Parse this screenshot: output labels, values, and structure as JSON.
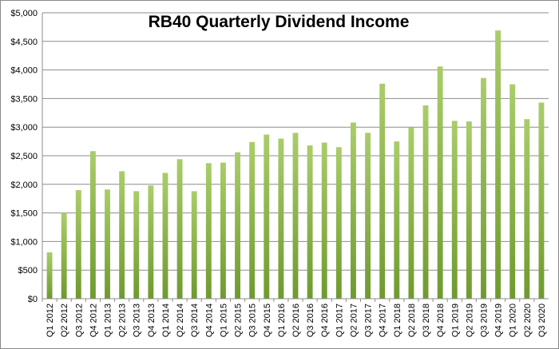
{
  "chart_data": {
    "type": "bar",
    "title": "RB40 Quarterly Dividend Income",
    "xlabel": "",
    "ylabel": "",
    "ylim": [
      0,
      5000
    ],
    "ytick_step": 500,
    "ytick_prefix": "$",
    "grid": true,
    "legend": "none",
    "bar_color_top": "#aacd6a",
    "bar_color_bottom": "#6f9a2e",
    "categories": [
      "Q1 2012",
      "Q2 2012",
      "Q3 2012",
      "Q4 2012",
      "Q1 2013",
      "Q2 2013",
      "Q3 2013",
      "Q4 2013",
      "Q1 2014",
      "Q2 2014",
      "Q3 2014",
      "Q4 2014",
      "Q1 2015",
      "Q2 2015",
      "Q3 2015",
      "Q4 2015",
      "Q1 2016",
      "Q2 2016",
      "Q3 2016",
      "Q4 2016",
      "Q1 2017",
      "Q2 2017",
      "Q3 2017",
      "Q4 2017",
      "Q1 2018",
      "Q2 2018",
      "Q3 2018",
      "Q4 2018",
      "Q1 2019",
      "Q2 2019",
      "Q3 2019",
      "Q4 2019",
      "Q1 2020",
      "Q2 2020",
      "Q3 2020"
    ],
    "values": [
      810,
      1500,
      1900,
      2580,
      1910,
      2230,
      1880,
      1980,
      2200,
      2440,
      1880,
      2370,
      2380,
      2560,
      2740,
      2870,
      2800,
      2900,
      2680,
      2730,
      2650,
      3080,
      2900,
      3760,
      2750,
      2990,
      3380,
      4060,
      3110,
      3100,
      3860,
      4690,
      3750,
      3140,
      3430
    ]
  }
}
